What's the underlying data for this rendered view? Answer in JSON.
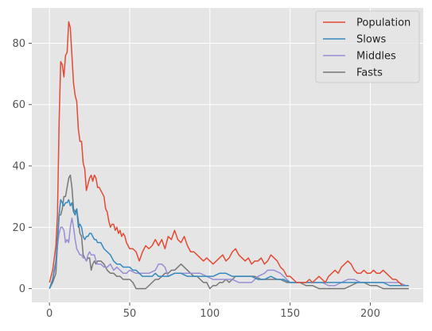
{
  "chart_data": {
    "type": "line",
    "title": "",
    "xlabel": "",
    "ylabel": "",
    "xlim": [
      -11,
      233
    ],
    "ylim": [
      -4.5,
      91.5
    ],
    "xticks": [
      0,
      50,
      100,
      150,
      200
    ],
    "yticks": [
      0,
      20,
      40,
      60,
      80
    ],
    "xtick_labels": [
      "0",
      "50",
      "100",
      "150",
      "200"
    ],
    "ytick_labels": [
      "0",
      "20",
      "40",
      "60",
      "80"
    ],
    "grid": true,
    "legend_position": "top-right",
    "series": [
      {
        "name": "Population",
        "color": "#E24A33",
        "x": [
          0,
          2,
          4,
          5,
          6,
          7,
          8,
          9,
          10,
          11,
          12,
          13,
          14,
          15,
          16,
          17,
          18,
          19,
          20,
          21,
          22,
          23,
          24,
          25,
          26,
          27,
          28,
          29,
          30,
          31,
          32,
          33,
          34,
          35,
          36,
          37,
          38,
          39,
          40,
          41,
          42,
          43,
          44,
          45,
          46,
          47,
          48,
          49,
          50,
          52,
          54,
          56,
          58,
          60,
          62,
          64,
          66,
          68,
          70,
          72,
          74,
          76,
          78,
          80,
          82,
          84,
          86,
          88,
          90,
          92,
          94,
          96,
          98,
          100,
          102,
          104,
          106,
          108,
          110,
          112,
          114,
          116,
          118,
          120,
          122,
          124,
          126,
          128,
          130,
          132,
          134,
          136,
          138,
          140,
          142,
          144,
          146,
          148,
          150,
          152,
          154,
          156,
          158,
          160,
          162,
          164,
          166,
          168,
          170,
          172,
          174,
          176,
          178,
          180,
          182,
          184,
          186,
          188,
          190,
          192,
          194,
          196,
          198,
          200,
          202,
          204,
          206,
          208,
          210,
          212,
          214,
          216,
          218,
          220
        ],
        "values": [
          2,
          6,
          14,
          24,
          54,
          74,
          73,
          69,
          76,
          77,
          87,
          85,
          76,
          67,
          63,
          61,
          52,
          48,
          48,
          41,
          39,
          32,
          34,
          36,
          37,
          35,
          37,
          36,
          33,
          33,
          32,
          31,
          30,
          26,
          25,
          22,
          20,
          21,
          21,
          19,
          20,
          18,
          19,
          17,
          18,
          17,
          15,
          14,
          13,
          13,
          12,
          9,
          12,
          14,
          13,
          14,
          16,
          14,
          16,
          13,
          17,
          16,
          19,
          16,
          15,
          17,
          14,
          12,
          12,
          11,
          10,
          9,
          10,
          9,
          8,
          9,
          10,
          11,
          9,
          10,
          12,
          13,
          11,
          10,
          9,
          10,
          8,
          9,
          9,
          10,
          8,
          9,
          11,
          10,
          9,
          7,
          6,
          4,
          4,
          3,
          2,
          2,
          2,
          2,
          3,
          2,
          3,
          4,
          3,
          2,
          4,
          5,
          6,
          5,
          7,
          8,
          9,
          8,
          6,
          5,
          5,
          6,
          5,
          5,
          6,
          5,
          5,
          6,
          5,
          4,
          3,
          3,
          2,
          1
        ]
      },
      {
        "name": "Slows",
        "color": "#348ABD",
        "x": [
          0,
          2,
          4,
          5,
          6,
          7,
          8,
          9,
          10,
          11,
          12,
          13,
          14,
          15,
          16,
          17,
          18,
          19,
          20,
          21,
          22,
          23,
          24,
          25,
          26,
          27,
          28,
          29,
          30,
          32,
          34,
          36,
          38,
          40,
          42,
          44,
          46,
          48,
          50,
          52,
          54,
          56,
          58,
          60,
          62,
          64,
          66,
          68,
          70,
          74,
          78,
          82,
          86,
          90,
          94,
          98,
          102,
          106,
          110,
          114,
          118,
          122,
          126,
          130,
          134,
          138,
          142,
          146,
          150,
          154,
          158,
          162,
          166,
          170,
          174,
          178,
          180,
          184,
          188,
          192,
          196,
          200,
          204,
          208,
          212,
          216,
          220,
          224
        ],
        "values": [
          0,
          3,
          9,
          16,
          24,
          29,
          28,
          27,
          28,
          28,
          29,
          27,
          28,
          25,
          24,
          26,
          20,
          21,
          20,
          17,
          16,
          17,
          17,
          18,
          18,
          17,
          16,
          16,
          15,
          15,
          13,
          12,
          11,
          9,
          8,
          8,
          7,
          7,
          7,
          6,
          6,
          5,
          4,
          4,
          4,
          4,
          5,
          4,
          4,
          4,
          5,
          5,
          4,
          4,
          4,
          4,
          4,
          5,
          5,
          4,
          4,
          4,
          4,
          3,
          3,
          4,
          3,
          3,
          2,
          2,
          2,
          2,
          2,
          2,
          2,
          2,
          2,
          2,
          2,
          2,
          2,
          2,
          2,
          2,
          1,
          1,
          1,
          1
        ]
      },
      {
        "name": "Middles",
        "color": "#988ED5",
        "x": [
          0,
          2,
          4,
          5,
          6,
          7,
          8,
          9,
          10,
          11,
          12,
          13,
          14,
          15,
          16,
          17,
          18,
          19,
          20,
          21,
          22,
          23,
          24,
          25,
          26,
          27,
          28,
          29,
          30,
          32,
          34,
          36,
          38,
          40,
          42,
          44,
          46,
          48,
          50,
          54,
          58,
          62,
          66,
          68,
          70,
          72,
          74,
          78,
          82,
          86,
          90,
          94,
          98,
          102,
          106,
          110,
          114,
          118,
          122,
          126,
          130,
          134,
          136,
          140,
          144,
          148,
          150,
          154,
          158,
          162,
          166,
          170,
          174,
          178,
          182,
          186,
          190,
          194,
          198,
          202,
          206,
          210,
          214,
          218,
          222,
          224
        ],
        "values": [
          0,
          3,
          8,
          14,
          18,
          20,
          20,
          19,
          15,
          16,
          15,
          20,
          23,
          20,
          16,
          13,
          12,
          11,
          11,
          10,
          10,
          9,
          11,
          12,
          11,
          11,
          11,
          9,
          8,
          8,
          7,
          7,
          8,
          6,
          7,
          6,
          5,
          5,
          6,
          5,
          5,
          5,
          6,
          8,
          8,
          7,
          4,
          5,
          5,
          5,
          5,
          5,
          4,
          3,
          3,
          3,
          3,
          2,
          2,
          2,
          4,
          5,
          6,
          6,
          5,
          3,
          2,
          2,
          2,
          2,
          2,
          2,
          1,
          1,
          2,
          3,
          3,
          2,
          2,
          2,
          2,
          2,
          2,
          2,
          1,
          1
        ]
      },
      {
        "name": "Fasts",
        "color": "#777777",
        "x": [
          0,
          2,
          4,
          5,
          6,
          7,
          8,
          9,
          10,
          11,
          12,
          13,
          14,
          15,
          16,
          17,
          18,
          19,
          20,
          21,
          22,
          23,
          24,
          25,
          26,
          27,
          28,
          29,
          30,
          32,
          34,
          36,
          38,
          40,
          42,
          44,
          46,
          48,
          50,
          52,
          54,
          56,
          58,
          60,
          62,
          64,
          66,
          68,
          70,
          72,
          74,
          76,
          78,
          80,
          82,
          84,
          86,
          88,
          90,
          92,
          94,
          96,
          98,
          100,
          102,
          104,
          106,
          108,
          110,
          112,
          116,
          120,
          124,
          128,
          132,
          136,
          140,
          144,
          148,
          152,
          156,
          160,
          164,
          168,
          172,
          176,
          180,
          184,
          188,
          192,
          196,
          200,
          204,
          208,
          212,
          216,
          220,
          224
        ],
        "values": [
          0,
          2,
          5,
          14,
          24,
          24,
          26,
          30,
          30,
          33,
          36,
          37,
          33,
          26,
          25,
          26,
          22,
          18,
          17,
          11,
          10,
          9,
          10,
          10,
          6,
          8,
          9,
          8,
          9,
          9,
          8,
          6,
          5,
          5,
          4,
          4,
          3,
          3,
          3,
          2,
          0,
          0,
          0,
          0,
          1,
          2,
          3,
          3,
          4,
          5,
          5,
          6,
          6,
          7,
          8,
          7,
          6,
          5,
          4,
          4,
          3,
          2,
          2,
          0,
          1,
          1,
          2,
          2,
          3,
          2,
          4,
          4,
          4,
          4,
          3,
          3,
          3,
          3,
          2,
          2,
          2,
          1,
          1,
          0,
          0,
          0,
          0,
          0,
          1,
          2,
          2,
          1,
          1,
          0,
          0,
          0,
          0,
          0
        ]
      }
    ]
  }
}
